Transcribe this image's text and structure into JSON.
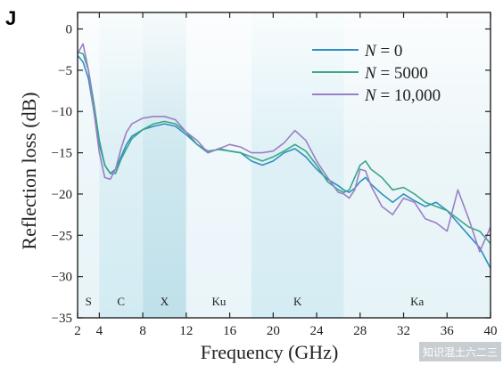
{
  "panel_label": "J",
  "watermark": "知识混土六二三",
  "chart_data": {
    "type": "line",
    "xlabel": "Frequency (GHz)",
    "ylabel": "Reflection loss (dB)",
    "xlim": [
      2,
      40
    ],
    "ylim": [
      -35,
      2
    ],
    "xticks": [
      2,
      4,
      8,
      12,
      16,
      20,
      24,
      28,
      32,
      36,
      40
    ],
    "yticks": [
      0,
      -5,
      -10,
      -15,
      -20,
      -25,
      -30,
      -35
    ],
    "grid": false,
    "legend_position": "top-right",
    "bands": [
      {
        "label": "S",
        "from": 2,
        "to": 4,
        "color": "#e8f4f8"
      },
      {
        "label": "C",
        "from": 4,
        "to": 8,
        "color": "#d2ebf2"
      },
      {
        "label": "X",
        "from": 8,
        "to": 12,
        "color": "#bfe0ea"
      },
      {
        "label": "Ku",
        "from": 12,
        "to": 18,
        "color": "#eaf5f9"
      },
      {
        "label": "K",
        "from": 18,
        "to": 26.5,
        "color": "#d4ecf3"
      },
      {
        "label": "Ka",
        "from": 26.5,
        "to": 40,
        "color": "#e6f3f7"
      }
    ],
    "series": [
      {
        "name": "N = 0",
        "color": "#2e8fc0",
        "points": [
          [
            2,
            -3.2
          ],
          [
            2.5,
            -4
          ],
          [
            3,
            -6
          ],
          [
            3.5,
            -10
          ],
          [
            4,
            -14
          ],
          [
            4.5,
            -16.5
          ],
          [
            5,
            -17.5
          ],
          [
            5.5,
            -17
          ],
          [
            6,
            -15.5
          ],
          [
            6.5,
            -14
          ],
          [
            7,
            -13
          ],
          [
            8,
            -12.2
          ],
          [
            9,
            -11.8
          ],
          [
            10,
            -11.5
          ],
          [
            11,
            -11.8
          ],
          [
            12,
            -12.8
          ],
          [
            13,
            -14
          ],
          [
            14,
            -15
          ],
          [
            15,
            -14.5
          ],
          [
            16,
            -14.8
          ],
          [
            17,
            -15
          ],
          [
            18,
            -16
          ],
          [
            19,
            -16.5
          ],
          [
            20,
            -16
          ],
          [
            21,
            -15
          ],
          [
            22,
            -14.5
          ],
          [
            23,
            -15.5
          ],
          [
            24,
            -17
          ],
          [
            25,
            -18.2
          ],
          [
            26,
            -19
          ],
          [
            26.5,
            -19.5
          ],
          [
            27,
            -19.8
          ],
          [
            27.5,
            -19.3
          ],
          [
            28,
            -18.5
          ],
          [
            28.5,
            -18
          ],
          [
            29,
            -18.8
          ],
          [
            30,
            -20
          ],
          [
            31,
            -21
          ],
          [
            32,
            -20
          ],
          [
            33,
            -20.8
          ],
          [
            34,
            -21.5
          ],
          [
            35,
            -21
          ],
          [
            36,
            -22
          ],
          [
            37,
            -23.5
          ],
          [
            38,
            -25
          ],
          [
            39,
            -26.5
          ],
          [
            40,
            -29
          ]
        ]
      },
      {
        "name": "N = 5000",
        "color": "#3ca58a",
        "points": [
          [
            2,
            -2.8
          ],
          [
            2.5,
            -3
          ],
          [
            3,
            -5
          ],
          [
            3.5,
            -9
          ],
          [
            4,
            -13.5
          ],
          [
            4.5,
            -16.5
          ],
          [
            5,
            -17.5
          ],
          [
            5.5,
            -17.5
          ],
          [
            6,
            -15.8
          ],
          [
            6.5,
            -14.5
          ],
          [
            7,
            -13.3
          ],
          [
            8,
            -12.2
          ],
          [
            9,
            -11.5
          ],
          [
            10,
            -11.2
          ],
          [
            11,
            -11.5
          ],
          [
            12,
            -12.5
          ],
          [
            13,
            -14
          ],
          [
            14,
            -14.8
          ],
          [
            15,
            -14.6
          ],
          [
            16,
            -14.8
          ],
          [
            17,
            -15
          ],
          [
            18,
            -15.5
          ],
          [
            19,
            -16
          ],
          [
            20,
            -15.5
          ],
          [
            21,
            -14.8
          ],
          [
            22,
            -14
          ],
          [
            23,
            -14.8
          ],
          [
            24,
            -16.5
          ],
          [
            25,
            -18.5
          ],
          [
            26,
            -19.5
          ],
          [
            26.5,
            -19.8
          ],
          [
            27,
            -19.5
          ],
          [
            27.5,
            -18
          ],
          [
            28,
            -16.5
          ],
          [
            28.5,
            -16
          ],
          [
            29,
            -17
          ],
          [
            30,
            -18
          ],
          [
            31,
            -19.5
          ],
          [
            32,
            -19.2
          ],
          [
            33,
            -20
          ],
          [
            34,
            -21
          ],
          [
            35,
            -21.5
          ],
          [
            36,
            -22
          ],
          [
            37,
            -23
          ],
          [
            38,
            -24
          ],
          [
            39,
            -24.5
          ],
          [
            40,
            -26
          ]
        ]
      },
      {
        "name": "N = 10,000",
        "color": "#9b7fc6",
        "points": [
          [
            2,
            -3
          ],
          [
            2.5,
            -1.8
          ],
          [
            3,
            -5
          ],
          [
            3.5,
            -10
          ],
          [
            4,
            -15
          ],
          [
            4.5,
            -18
          ],
          [
            5,
            -18.2
          ],
          [
            5.5,
            -17
          ],
          [
            6,
            -14.5
          ],
          [
            6.5,
            -12.5
          ],
          [
            7,
            -11.5
          ],
          [
            8,
            -10.8
          ],
          [
            9,
            -10.6
          ],
          [
            10,
            -10.6
          ],
          [
            11,
            -11
          ],
          [
            12,
            -12.5
          ],
          [
            13,
            -13.5
          ],
          [
            14,
            -15
          ],
          [
            15,
            -14.5
          ],
          [
            16,
            -14
          ],
          [
            17,
            -14.3
          ],
          [
            18,
            -15
          ],
          [
            19,
            -15
          ],
          [
            20,
            -14.8
          ],
          [
            21,
            -13.8
          ],
          [
            22,
            -12.3
          ],
          [
            23,
            -13.5
          ],
          [
            24,
            -16
          ],
          [
            25,
            -18
          ],
          [
            26,
            -19.8
          ],
          [
            26.5,
            -20
          ],
          [
            27,
            -20.5
          ],
          [
            27.5,
            -19.5
          ],
          [
            28,
            -17
          ],
          [
            28.5,
            -17.2
          ],
          [
            29,
            -19
          ],
          [
            30,
            -21.5
          ],
          [
            31,
            -22.5
          ],
          [
            32,
            -20.5
          ],
          [
            33,
            -21
          ],
          [
            34,
            -23
          ],
          [
            35,
            -23.5
          ],
          [
            36,
            -24.5
          ],
          [
            37,
            -19.5
          ],
          [
            38,
            -23
          ],
          [
            39,
            -27
          ],
          [
            40,
            -24
          ]
        ]
      }
    ]
  }
}
